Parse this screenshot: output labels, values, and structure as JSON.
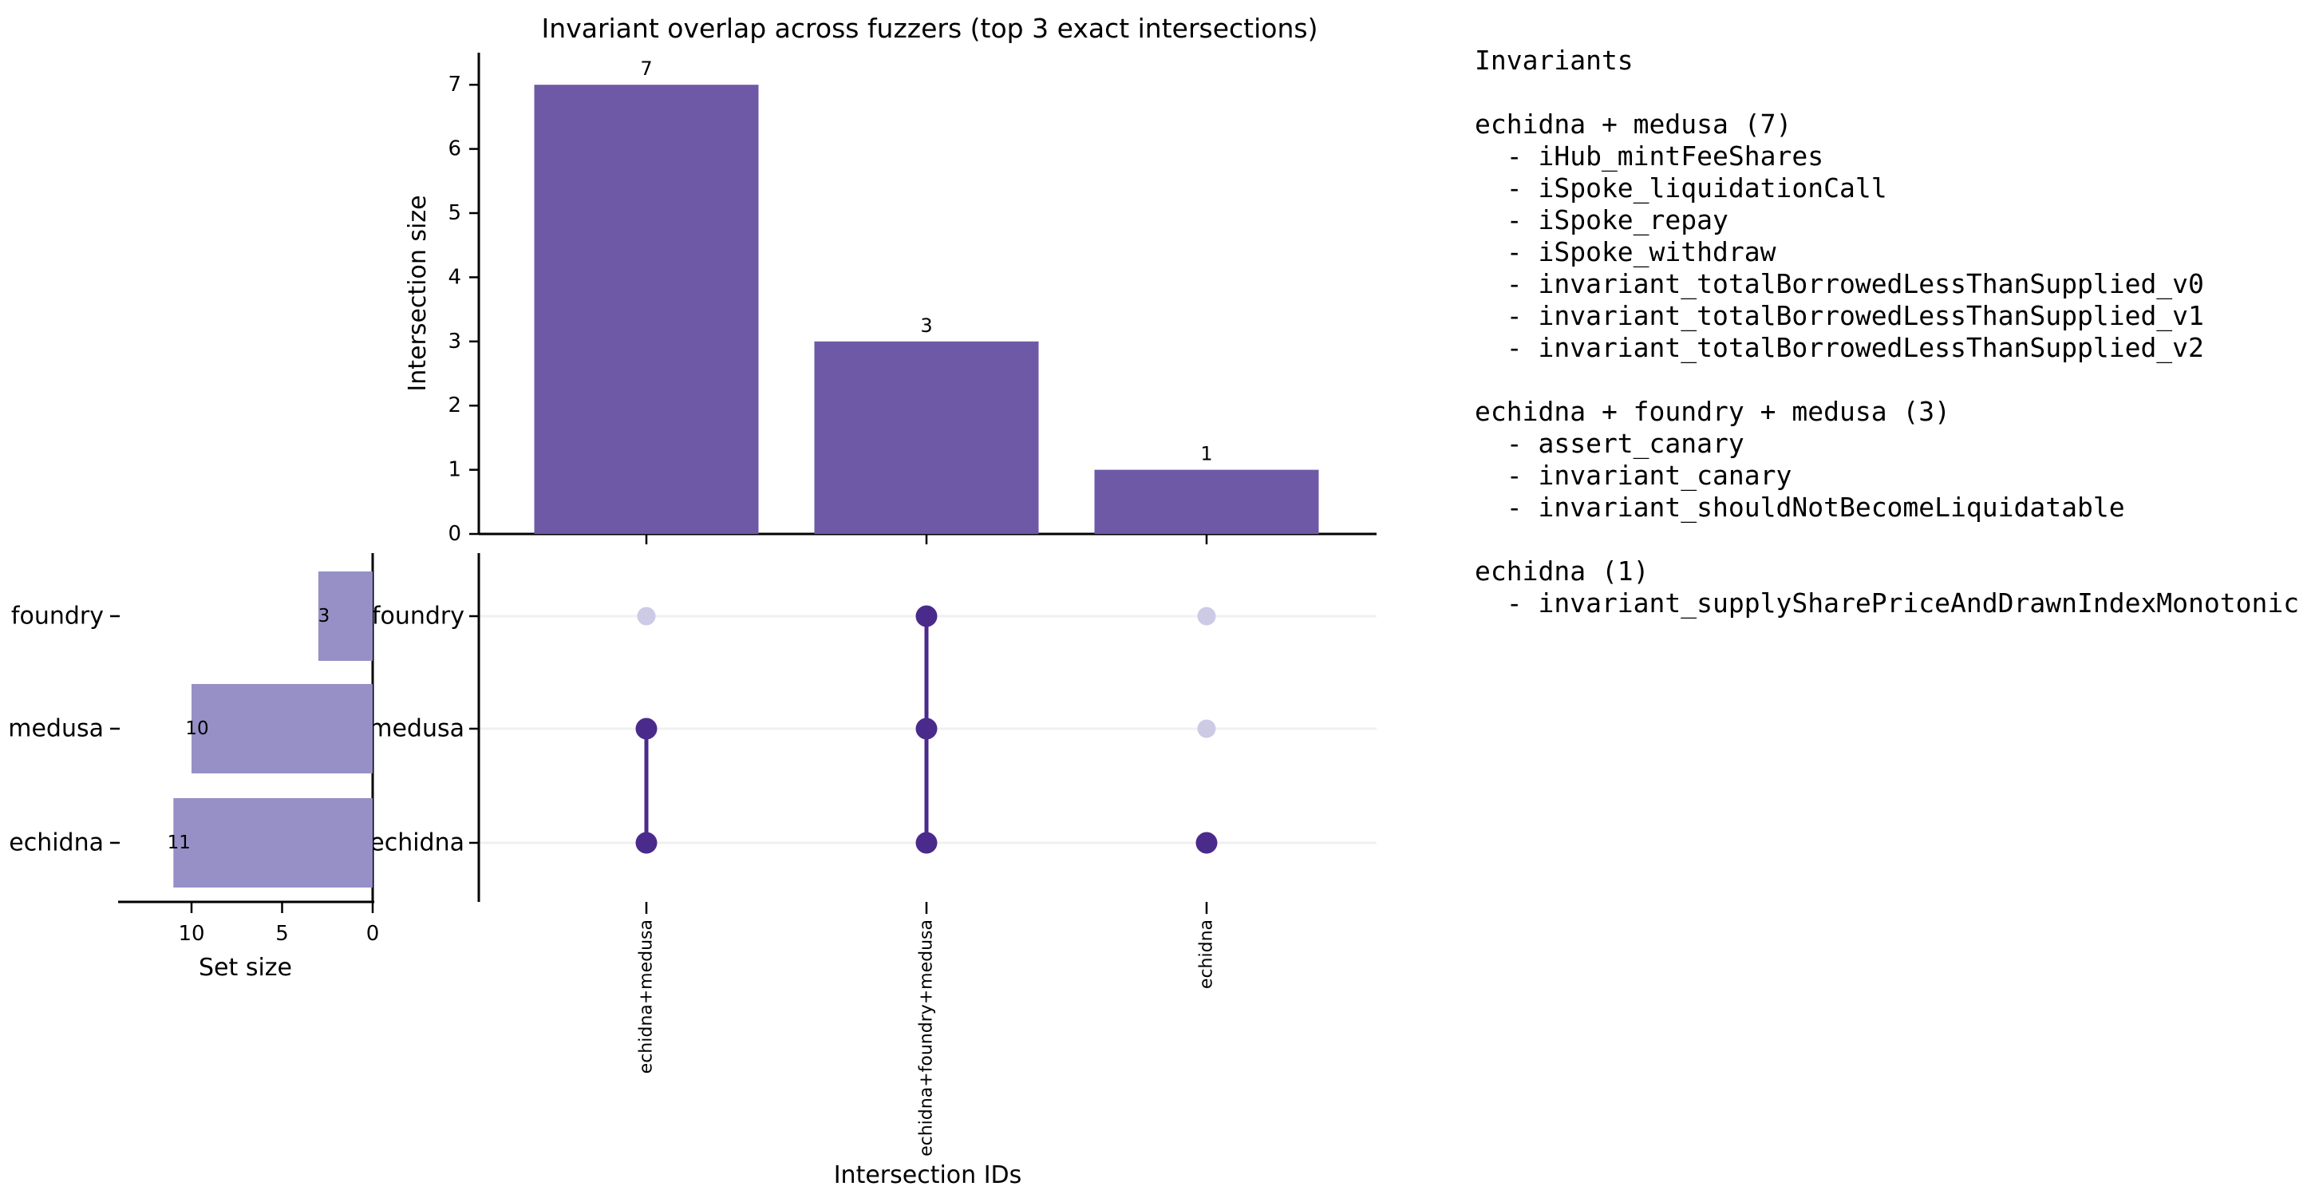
{
  "title": "Invariant overlap across fuzzers (top 3 exact intersections)",
  "colors": {
    "intersection_bar": "#6e59a7",
    "set_bar": "#9690c6",
    "dot_active": "#4a2a8b",
    "dot_inactive": "#cccae4",
    "connector": "#4a2a8b",
    "gridline": "#f0f0f0",
    "axis": "#000000",
    "text": "#000000",
    "background": "#ffffff"
  },
  "chart_data": {
    "type": "upset",
    "title": "Invariant overlap across fuzzers (top 3 exact intersections)",
    "matrix_rows": [
      "foundry",
      "medusa",
      "echidna"
    ],
    "sets": [
      {
        "name": "foundry",
        "size": 3
      },
      {
        "name": "medusa",
        "size": 10
      },
      {
        "name": "echidna",
        "size": 11
      }
    ],
    "intersections": [
      {
        "id": "echidna+medusa",
        "members": [
          "echidna",
          "medusa"
        ],
        "size": 7
      },
      {
        "id": "echidna+foundry+medusa",
        "members": [
          "echidna",
          "foundry",
          "medusa"
        ],
        "size": 3
      },
      {
        "id": "echidna",
        "members": [
          "echidna"
        ],
        "size": 1
      }
    ],
    "intersection_axis": {
      "label": "Intersection size",
      "ticks": [
        0,
        1,
        2,
        3,
        4,
        5,
        6,
        7
      ],
      "ylim": [
        0,
        7.5
      ]
    },
    "set_axis": {
      "label": "Set size",
      "ticks": [
        10,
        5,
        0
      ],
      "xlim": [
        0,
        14
      ]
    },
    "xlabel": "Intersection IDs",
    "grid": "row-stripes",
    "legend": "none"
  },
  "invariants_panel": {
    "header": "Invariants",
    "item_prefix": "  - ",
    "groups": [
      {
        "label": "echidna + medusa",
        "count": 7,
        "items": [
          "iHub_mintFeeShares",
          "iSpoke_liquidationCall",
          "iSpoke_repay",
          "iSpoke_withdraw",
          "invariant_totalBorrowedLessThanSupplied_v0",
          "invariant_totalBorrowedLessThanSupplied_v1",
          "invariant_totalBorrowedLessThanSupplied_v2"
        ]
      },
      {
        "label": "echidna + foundry + medusa",
        "count": 3,
        "items": [
          "assert_canary",
          "invariant_canary",
          "invariant_shouldNotBecomeLiquidatable"
        ]
      },
      {
        "label": "echidna",
        "count": 1,
        "items": [
          "invariant_supplySharePriceAndDrawnIndexMonotonic"
        ]
      }
    ]
  }
}
